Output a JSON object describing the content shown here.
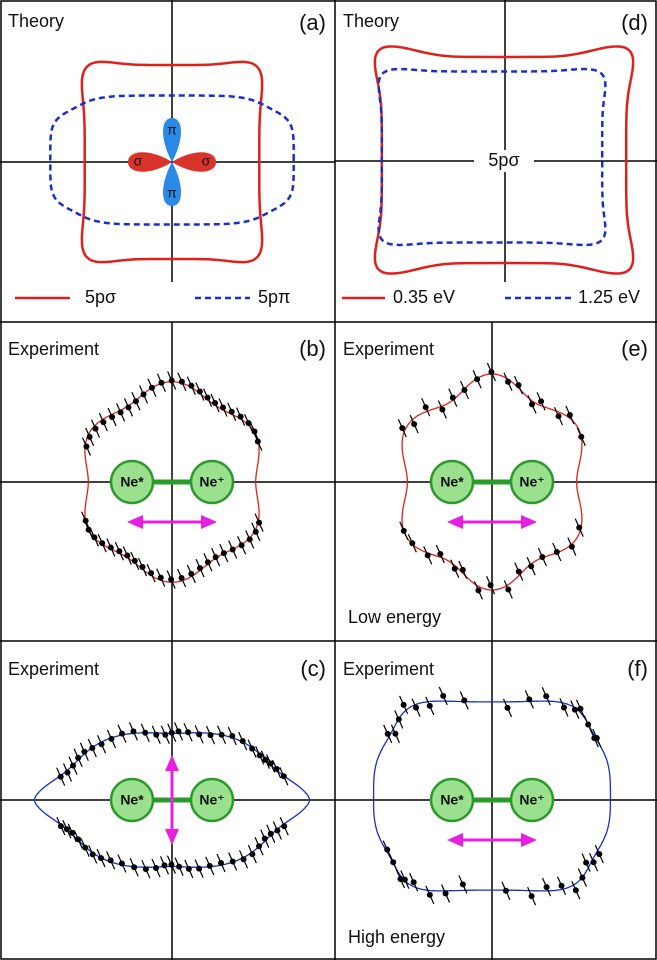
{
  "panels": [
    {
      "title": "Theory",
      "label": "(a)",
      "legend": [
        "5pσ",
        "5pπ"
      ],
      "orbitals": [
        "σ",
        "σ",
        "π",
        "π"
      ]
    },
    {
      "title": "Experiment",
      "label": "(b)",
      "molecule": [
        "Ne*",
        "Ne⁺"
      ]
    },
    {
      "title": "Experiment",
      "label": "(c)",
      "molecule": [
        "Ne*",
        "Ne⁺"
      ]
    },
    {
      "title": "Theory",
      "label": "(d)",
      "center": "5pσ",
      "legend": [
        "0.35 eV",
        "1.25 eV"
      ]
    },
    {
      "title": "Experiment",
      "label": "(e)",
      "molecule": [
        "Ne*",
        "Ne⁺"
      ],
      "note": "Low energy"
    },
    {
      "title": "Experiment",
      "label": "(f)",
      "molecule": [
        "Ne*",
        "Ne⁺"
      ],
      "note": "High energy"
    }
  ]
}
